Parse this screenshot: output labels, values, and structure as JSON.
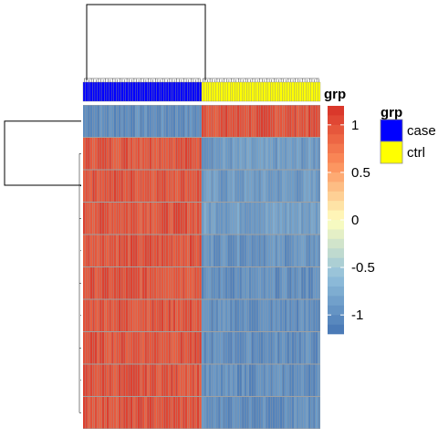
{
  "chart_data": {
    "type": "heatmap",
    "title": "",
    "xlabel": "",
    "ylabel": "",
    "n_rows": 10,
    "n_cols_case": 50,
    "n_cols_ctrl": 50,
    "row_block_values": [
      {
        "case": -1,
        "ctrl": 1
      },
      {
        "case": 1,
        "ctrl": -0.9
      },
      {
        "case": 1,
        "ctrl": -0.9
      },
      {
        "case": 1,
        "ctrl": -0.85
      },
      {
        "case": 1,
        "ctrl": -0.95
      },
      {
        "case": 1,
        "ctrl": -1
      },
      {
        "case": 1,
        "ctrl": -1
      },
      {
        "case": 1,
        "ctrl": -1
      },
      {
        "case": 1,
        "ctrl": -1
      },
      {
        "case": 1,
        "ctrl": -1
      }
    ],
    "annotation": {
      "name": "grp",
      "levels": [
        "case",
        "ctrl"
      ],
      "colors": {
        "case": "#0000FF",
        "ctrl": "#FFFF00"
      }
    },
    "colorbar": {
      "title": "grp",
      "range": [
        -1.2,
        1.2
      ],
      "ticks": [
        1,
        0.5,
        0,
        -0.5,
        -1
      ],
      "tick_labels": [
        "1",
        "0.5",
        "0",
        "-0.5",
        "-1"
      ],
      "colors": [
        "#4575B4",
        "#91BFDB",
        "#FFFFBF",
        "#FC8D59",
        "#D73027"
      ]
    },
    "legend": {
      "title": "grp",
      "position": "right",
      "entries": [
        {
          "label": "case",
          "color": "#0000FF"
        },
        {
          "label": "ctrl",
          "color": "#FFFF00"
        }
      ]
    },
    "cell_colors": {
      "high": "#D7604D",
      "low": "#6E8EB8",
      "border": "#A0A0A0"
    },
    "dendrogram": {
      "column": true,
      "row": true
    }
  }
}
